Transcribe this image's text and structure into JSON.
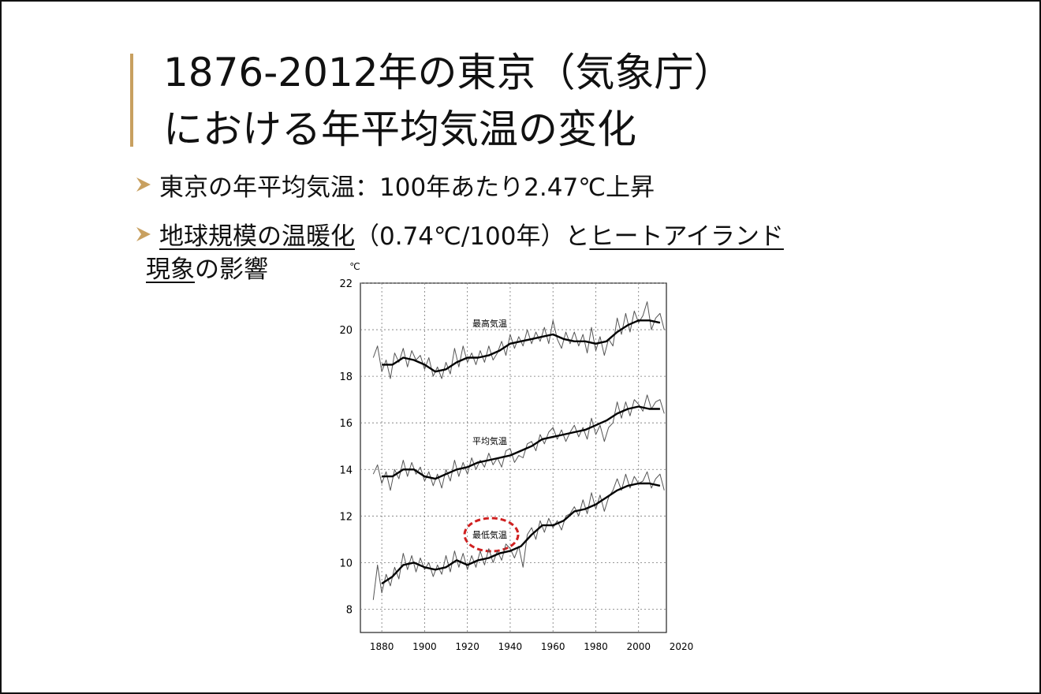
{
  "header": {
    "title_lines": [
      "1876-2012年の東京（気象庁）",
      "における年平均気温の変化"
    ]
  },
  "bullets": [
    {
      "text": "東京の年平均気温：100年あたり2.47℃上昇"
    },
    {
      "parts": [
        "地球規模の温暖化",
        "（0.74℃/100年）と",
        "ヒートアイランド",
        "現象",
        "の影響"
      ]
    }
  ],
  "chart_data": {
    "type": "line",
    "y_unit": "℃",
    "xlim": [
      1870,
      2013
    ],
    "xticks": [
      1880,
      1900,
      1920,
      1940,
      1960,
      1980,
      2000,
      2020
    ],
    "ylim": [
      7,
      22
    ],
    "yticks": [
      8,
      10,
      12,
      14,
      16,
      18,
      20,
      22
    ],
    "grid": true,
    "x": [
      1876,
      1878,
      1880,
      1882,
      1884,
      1886,
      1888,
      1890,
      1892,
      1894,
      1896,
      1898,
      1900,
      1902,
      1904,
      1906,
      1908,
      1910,
      1912,
      1914,
      1916,
      1918,
      1920,
      1922,
      1924,
      1926,
      1928,
      1930,
      1932,
      1934,
      1936,
      1938,
      1940,
      1942,
      1944,
      1946,
      1948,
      1950,
      1952,
      1954,
      1956,
      1958,
      1960,
      1962,
      1964,
      1966,
      1968,
      1970,
      1972,
      1974,
      1976,
      1978,
      1980,
      1982,
      1984,
      1986,
      1988,
      1990,
      1992,
      1994,
      1996,
      1998,
      2000,
      2002,
      2004,
      2006,
      2008,
      2010,
      2012
    ],
    "smooth_x": [
      1880,
      1885,
      1890,
      1895,
      1900,
      1905,
      1910,
      1915,
      1920,
      1925,
      1930,
      1935,
      1940,
      1945,
      1950,
      1955,
      1960,
      1965,
      1970,
      1975,
      1980,
      1985,
      1990,
      1995,
      2000,
      2005,
      2010
    ],
    "series": [
      {
        "name": "最高気温",
        "color": "#555555",
        "smooth_color": "#000000",
        "values": [
          18.8,
          19.3,
          18.2,
          18.7,
          17.9,
          19.0,
          18.6,
          19.2,
          18.4,
          19.1,
          18.7,
          18.9,
          18.3,
          18.8,
          18.0,
          18.4,
          17.9,
          18.6,
          18.1,
          19.2,
          18.4,
          19.3,
          18.6,
          19.0,
          18.5,
          19.1,
          18.6,
          19.3,
          18.7,
          19.0,
          19.5,
          18.9,
          19.8,
          19.2,
          19.7,
          19.3,
          20.0,
          19.4,
          19.9,
          19.5,
          20.1,
          19.4,
          20.4,
          19.6,
          19.2,
          19.9,
          19.4,
          19.9,
          19.3,
          19.8,
          19.0,
          20.1,
          19.1,
          19.7,
          18.9,
          19.6,
          19.3,
          20.5,
          19.8,
          20.7,
          19.9,
          20.8,
          20.3,
          20.6,
          21.2,
          20.0,
          20.5,
          20.7,
          20.0
        ],
        "smooth": [
          18.5,
          18.5,
          18.8,
          18.7,
          18.5,
          18.2,
          18.3,
          18.6,
          18.8,
          18.8,
          18.9,
          19.1,
          19.4,
          19.5,
          19.6,
          19.7,
          19.8,
          19.6,
          19.5,
          19.5,
          19.4,
          19.5,
          19.9,
          20.2,
          20.4,
          20.4,
          20.3
        ]
      },
      {
        "name": "平均気温",
        "color": "#555555",
        "smooth_color": "#000000",
        "values": [
          13.8,
          14.2,
          13.4,
          13.9,
          13.1,
          14.0,
          13.6,
          14.4,
          13.7,
          14.3,
          13.8,
          14.1,
          13.5,
          13.9,
          13.3,
          13.8,
          13.2,
          14.0,
          13.5,
          14.4,
          13.7,
          14.3,
          13.8,
          14.5,
          14.0,
          14.4,
          14.1,
          14.7,
          14.2,
          14.5,
          14.1,
          14.8,
          14.9,
          14.3,
          14.6,
          14.5,
          15.1,
          15.2,
          14.8,
          15.5,
          15.1,
          15.6,
          15.8,
          15.3,
          15.7,
          15.2,
          15.6,
          15.9,
          15.4,
          15.8,
          15.3,
          16.2,
          15.5,
          15.9,
          15.2,
          15.8,
          16.0,
          16.9,
          16.2,
          16.9,
          16.3,
          17.0,
          16.8,
          16.5,
          17.2,
          16.6,
          16.9,
          17.0,
          16.4
        ],
        "smooth": [
          13.7,
          13.7,
          14.0,
          14.0,
          13.7,
          13.6,
          13.8,
          14.0,
          14.1,
          14.3,
          14.4,
          14.5,
          14.6,
          14.8,
          15.0,
          15.3,
          15.4,
          15.5,
          15.6,
          15.7,
          15.9,
          16.1,
          16.4,
          16.6,
          16.7,
          16.6,
          16.6
        ]
      },
      {
        "name": "最低気温",
        "color": "#555555",
        "smooth_color": "#000000",
        "values": [
          8.4,
          9.9,
          8.7,
          9.5,
          9.0,
          9.8,
          9.3,
          10.4,
          9.7,
          10.3,
          9.6,
          10.2,
          9.7,
          10.0,
          9.4,
          9.9,
          9.5,
          10.3,
          9.6,
          10.5,
          9.8,
          10.4,
          9.7,
          10.3,
          9.8,
          10.5,
          9.9,
          10.6,
          10.0,
          10.5,
          10.1,
          10.8,
          10.6,
          10.2,
          10.7,
          9.8,
          11.2,
          11.5,
          11.0,
          11.8,
          11.3,
          11.9,
          11.5,
          11.8,
          11.4,
          12.0,
          12.1,
          12.4,
          12.0,
          12.7,
          12.1,
          13.0,
          12.3,
          12.9,
          12.2,
          12.8,
          13.1,
          13.6,
          13.1,
          13.8,
          13.2,
          13.7,
          13.4,
          13.5,
          13.9,
          13.2,
          13.6,
          13.8,
          13.1
        ],
        "smooth": [
          9.1,
          9.4,
          9.9,
          10.0,
          9.8,
          9.7,
          9.8,
          10.1,
          9.9,
          10.1,
          10.2,
          10.4,
          10.5,
          10.7,
          11.2,
          11.6,
          11.6,
          11.8,
          12.2,
          12.3,
          12.5,
          12.8,
          13.1,
          13.3,
          13.4,
          13.4,
          13.3
        ]
      }
    ]
  }
}
